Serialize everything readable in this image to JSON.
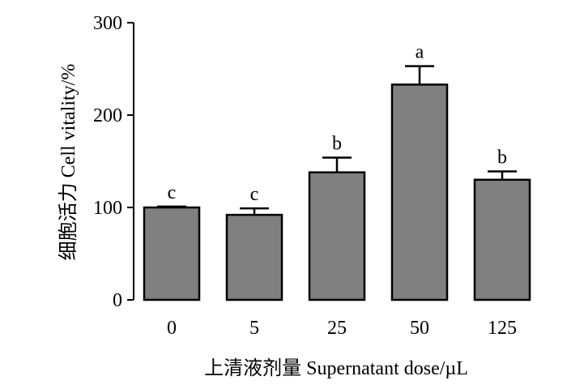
{
  "chart_data": {
    "type": "bar",
    "categories": [
      "0",
      "5",
      "25",
      "50",
      "125"
    ],
    "values": [
      100,
      92,
      138,
      233,
      130
    ],
    "error": [
      1,
      7,
      16,
      20,
      9
    ],
    "letters": [
      "c",
      "c",
      "b",
      "a",
      "b"
    ],
    "xlabel": "上清液剂量  Supernatant dose/µL",
    "ylabel": "细胞活力  Cell vitality/%",
    "ylim": [
      0,
      300
    ],
    "yticks": [
      "0",
      "100",
      "200",
      "300"
    ],
    "bar_color": "#808080",
    "grid": false,
    "legend": "none"
  }
}
